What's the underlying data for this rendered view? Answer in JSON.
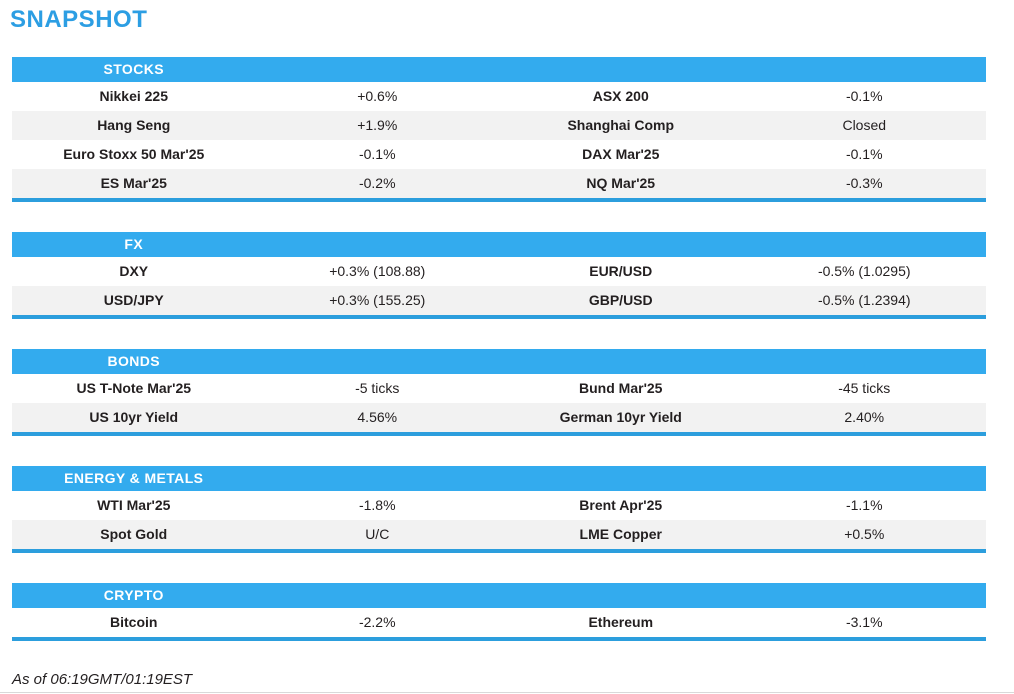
{
  "page": {
    "title": "SNAPSHOT",
    "footer": "As of 06:19GMT/01:19EST"
  },
  "colors": {
    "accent_blue": "#33abee",
    "border_blue": "#2c9edd",
    "title_blue": "#2c9ee3",
    "row_alt": "#f2f2f2",
    "text": "#231f20"
  },
  "sections": [
    {
      "header": "STOCKS",
      "rows": [
        {
          "label_left": "Nikkei 225",
          "value_left": "+0.6%",
          "label_right": "ASX 200",
          "value_right": "-0.1%"
        },
        {
          "label_left": "Hang Seng",
          "value_left": "+1.9%",
          "label_right": "Shanghai Comp",
          "value_right": "Closed"
        },
        {
          "label_left": "Euro Stoxx 50 Mar'25",
          "value_left": "-0.1%",
          "label_right": "DAX Mar'25",
          "value_right": "-0.1%"
        },
        {
          "label_left": "ES Mar'25",
          "value_left": "-0.2%",
          "label_right": "NQ Mar'25",
          "value_right": "-0.3%"
        }
      ]
    },
    {
      "header": "FX",
      "rows": [
        {
          "label_left": "DXY",
          "value_left": "+0.3% (108.88)",
          "label_right": "EUR/USD",
          "value_right": "-0.5% (1.0295)"
        },
        {
          "label_left": "USD/JPY",
          "value_left": "+0.3% (155.25)",
          "label_right": "GBP/USD",
          "value_right": "-0.5% (1.2394)"
        }
      ]
    },
    {
      "header": "BONDS",
      "rows": [
        {
          "label_left": "US T-Note Mar'25",
          "value_left": "-5 ticks",
          "label_right": "Bund Mar'25",
          "value_right": "-45 ticks"
        },
        {
          "label_left": "US 10yr Yield",
          "value_left": "4.56%",
          "label_right": "German 10yr Yield",
          "value_right": "2.40%"
        }
      ]
    },
    {
      "header": "ENERGY & METALS",
      "rows": [
        {
          "label_left": "WTI Mar'25",
          "value_left": "-1.8%",
          "label_right": "Brent Apr'25",
          "value_right": "-1.1%"
        },
        {
          "label_left": "Spot Gold",
          "value_left": "U/C",
          "label_right": "LME Copper",
          "value_right": "+0.5%"
        }
      ]
    },
    {
      "header": "CRYPTO",
      "rows": [
        {
          "label_left": "Bitcoin",
          "value_left": "-2.2%",
          "label_right": "Ethereum",
          "value_right": "-3.1%"
        }
      ]
    }
  ]
}
